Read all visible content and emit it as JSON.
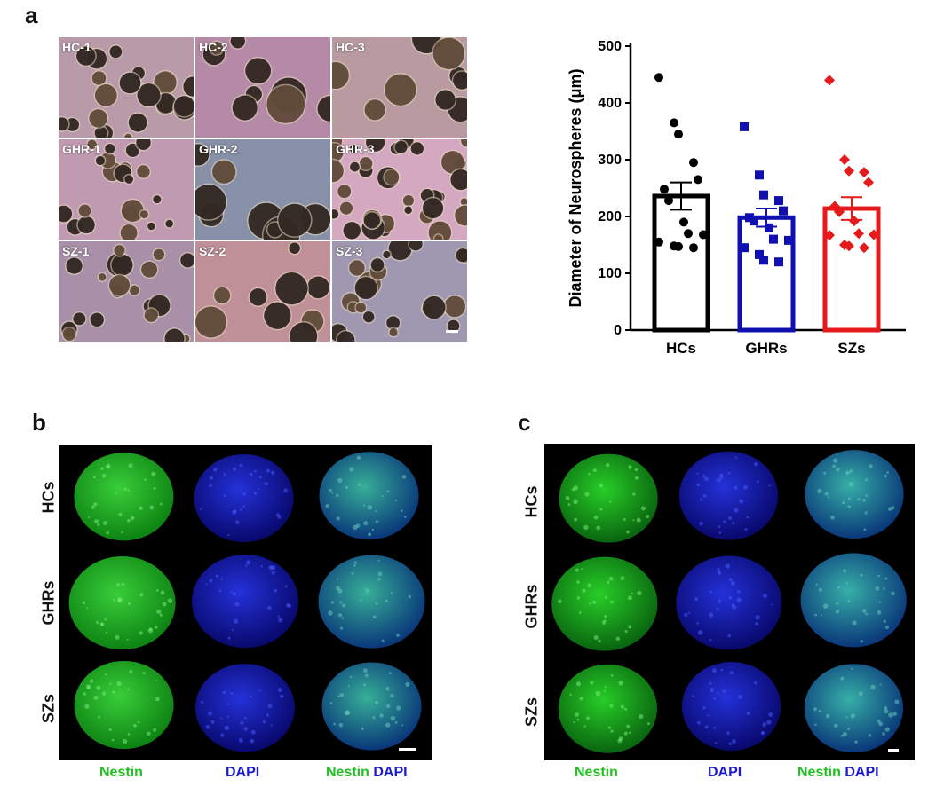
{
  "panel_letters": {
    "a": "a",
    "b": "b",
    "c": "c"
  },
  "panel_a": {
    "micro_labels": [
      "HC-1",
      "HC-2",
      "HC-3",
      "GHR-1",
      "GHR-2",
      "GHR-3",
      "SZ-1",
      "SZ-2",
      "SZ-3"
    ]
  },
  "panel_b": {
    "row_labels": [
      "HCs",
      "GHRs",
      "SZs"
    ],
    "col_labels": {
      "nestin": "Nestin",
      "dapi": "DAPI",
      "merge_nestin": "Nestin",
      "merge_dapi": "DAPI"
    }
  },
  "panel_c": {
    "row_labels": [
      "HCs",
      "GHRs",
      "SZs"
    ],
    "col_labels": {
      "nestin": "Nestin",
      "dapi": "DAPI",
      "merge_nestin": "Nestin",
      "merge_dapi": "DAPI"
    }
  },
  "colors": {
    "hc": "#000000",
    "ghr": "#1010b0",
    "sz": "#e51a1a",
    "nestin": "#1fc01f",
    "dapi": "#1a1ad0"
  },
  "chart_data": {
    "type": "bar",
    "categories": [
      "HCs",
      "GHRs",
      "SZs"
    ],
    "ylabel": "Diameter of  Neurospheres (μm)",
    "ylim": [
      0,
      500
    ],
    "yticks": [
      0,
      100,
      200,
      300,
      400,
      500
    ],
    "means": [
      236,
      198,
      214
    ],
    "sem": [
      24,
      16,
      20
    ],
    "points": [
      [
        445,
        365,
        345,
        295,
        265,
        248,
        228,
        190,
        170,
        168,
        155,
        148,
        147,
        145
      ],
      [
        358,
        273,
        238,
        228,
        210,
        198,
        192,
        180,
        160,
        158,
        145,
        133,
        123,
        120
      ],
      [
        440,
        300,
        280,
        278,
        260,
        218,
        208,
        192,
        170,
        168,
        167,
        150,
        148,
        145
      ]
    ],
    "markers": [
      "circle",
      "square",
      "diamond"
    ],
    "grid": false
  }
}
